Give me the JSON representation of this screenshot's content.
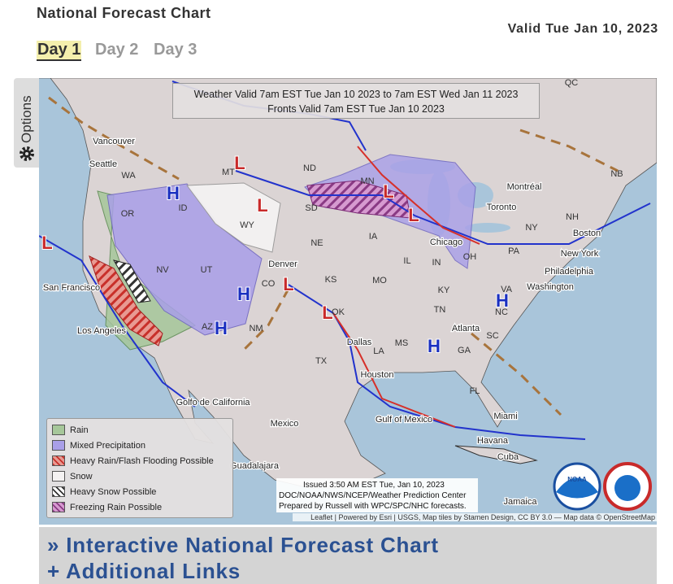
{
  "header": {
    "title": "National Forecast Chart",
    "valid": "Valid Tue Jan 10, 2023"
  },
  "tabs": [
    "Day 1",
    "Day 2",
    "Day 3"
  ],
  "options": "Options",
  "map": {
    "banner": [
      "Weather Valid 7am EST Tue Jan 10 2023 to 7am EST Wed Jan 11 2023",
      "Fronts Valid 7am EST Tue Jan 10 2023"
    ],
    "labels": [
      "QC",
      "Vancouver",
      "Seattle",
      "WA",
      "MT",
      "ND",
      "MN",
      "NB",
      "Montréal",
      "ID",
      "SD",
      "WY",
      "OR",
      "Toronto",
      "NH",
      "NY",
      "Boston",
      "NE",
      "IA",
      "Chicago",
      "PA",
      "New York",
      "NV",
      "UT",
      "Denver",
      "CO",
      "IL",
      "IN",
      "OH",
      "Philadelphia",
      "Washington",
      "San Francisco",
      "KS",
      "MO",
      "KY",
      "VA",
      "Los Angeles",
      "AZ",
      "NM",
      "OK",
      "TN",
      "NC",
      "Atlanta",
      "SC",
      "Dallas",
      "MS",
      "GA",
      "LA",
      "TX",
      "Houston",
      "FL",
      "Golfo de California",
      "Mexico",
      "Gulf of Mexico",
      "Miami",
      "Havana",
      "Cuba",
      "Guadalajara",
      "Jamaica"
    ],
    "pressure_centers": [
      "H",
      "L",
      "L",
      "L",
      "L",
      "L",
      "H",
      "H",
      "L",
      "L",
      "H",
      "H"
    ],
    "legend": [
      "Rain",
      "Mixed Precipitation",
      "Heavy Rain/Flash Flooding Possible",
      "Snow",
      "Heavy Snow Possible",
      "Freezing Rain Possible"
    ],
    "issued": [
      "Issued 3:50 AM EST Tue, Jan 10, 2023",
      "DOC/NOAA/NWS/NCEP/Weather Prediction Center",
      "Prepared by Russell with WPC/SPC/NHC forecasts."
    ],
    "attribution": "Leaflet | Powered by Esri | USGS, Map tiles by Stamen Design, CC BY 3.0 — Map data © OpenStreetMap"
  },
  "links": [
    "» Interactive National Forecast Chart",
    "+ Additional Links"
  ]
}
